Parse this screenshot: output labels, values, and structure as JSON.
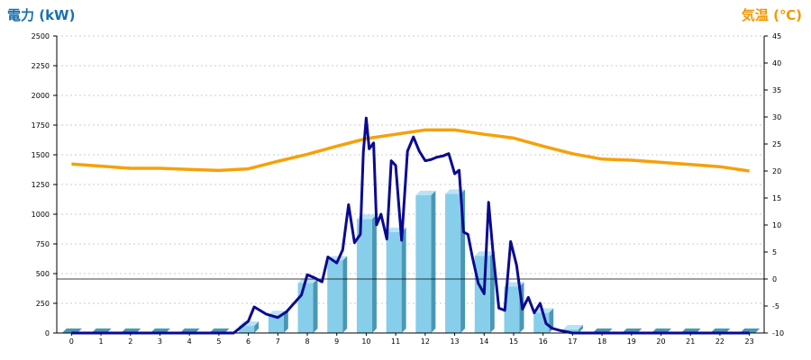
{
  "colors": {
    "power_axis": "#1a6fb0",
    "temp_axis": "#f39800",
    "bar_front": "#87ceeb",
    "bar_top": "#b9e3f5",
    "bar_side": "#4a97b5",
    "power_line": "#0a0a90",
    "temp_line": "#f5a10a",
    "grid": "#bbbbbb"
  },
  "chart_data": {
    "type": "bar",
    "left_axis_label": "電力 (kW)",
    "right_axis_label": "気温 (℃)",
    "categories": [
      "0",
      "1",
      "2",
      "3",
      "4",
      "5",
      "6",
      "7",
      "8",
      "9",
      "10",
      "11",
      "12",
      "13",
      "14",
      "15",
      "16",
      "17",
      "18",
      "19",
      "20",
      "21",
      "22",
      "23"
    ],
    "left_ylim": [
      0,
      2500
    ],
    "left_ticks": [
      "0",
      "250",
      "500",
      "750",
      "1000",
      "1250",
      "1500",
      "1750",
      "2000",
      "2250",
      "2500"
    ],
    "right_ylim": [
      -10,
      45
    ],
    "right_ticks": [
      "-10",
      "-5",
      "0",
      "5",
      "10",
      "15",
      "20",
      "25",
      "30",
      "35",
      "40",
      "45"
    ],
    "grid": "horizontal dotted",
    "series": [
      {
        "kind": "bar",
        "axis": "left",
        "values": [
          0,
          0,
          0,
          0,
          0,
          0,
          60,
          150,
          420,
          610,
          960,
          850,
          1160,
          1170,
          650,
          390,
          170,
          30,
          0,
          0,
          0,
          0,
          0,
          0
        ]
      },
      {
        "kind": "line",
        "axis": "left",
        "x": [
          0,
          5.5,
          6.0,
          6.2,
          6.6,
          7.0,
          7.3,
          7.8,
          8.0,
          8.2,
          8.5,
          8.7,
          9.0,
          9.2,
          9.4,
          9.6,
          9.8,
          9.9,
          10.0,
          10.1,
          10.25,
          10.35,
          10.5,
          10.7,
          10.85,
          11.0,
          11.2,
          11.4,
          11.6,
          11.8,
          12.0,
          12.2,
          12.4,
          12.6,
          12.8,
          13.0,
          13.15,
          13.3,
          13.45,
          13.6,
          13.8,
          14.0,
          14.15,
          14.3,
          14.5,
          14.7,
          14.9,
          15.1,
          15.3,
          15.5,
          15.7,
          15.9,
          16.1,
          16.3,
          16.6,
          17.0,
          17.3,
          23
        ],
        "values": [
          0,
          0,
          100,
          220,
          160,
          130,
          180,
          320,
          490,
          470,
          430,
          640,
          590,
          700,
          1080,
          760,
          830,
          1520,
          1810,
          1550,
          1600,
          910,
          1000,
          790,
          1450,
          1410,
          780,
          1530,
          1650,
          1530,
          1450,
          1460,
          1480,
          1490,
          1510,
          1340,
          1370,
          850,
          830,
          640,
          420,
          330,
          1100,
          680,
          210,
          190,
          770,
          570,
          200,
          300,
          170,
          250,
          80,
          40,
          20,
          0,
          0,
          0
        ]
      },
      {
        "kind": "line",
        "axis": "right",
        "x": [
          0,
          1,
          2,
          3,
          4,
          5,
          6,
          7,
          8,
          9,
          10,
          11,
          12,
          13,
          14,
          15,
          16,
          17,
          18,
          19,
          20,
          21,
          22,
          23
        ],
        "values": [
          21.3,
          20.9,
          20.5,
          20.5,
          20.3,
          20.1,
          20.4,
          21.8,
          23.1,
          24.6,
          26.0,
          26.8,
          27.6,
          27.6,
          26.8,
          26.1,
          24.6,
          23.2,
          22.2,
          22.0,
          21.6,
          21.2,
          20.8,
          20.0
        ]
      }
    ]
  }
}
